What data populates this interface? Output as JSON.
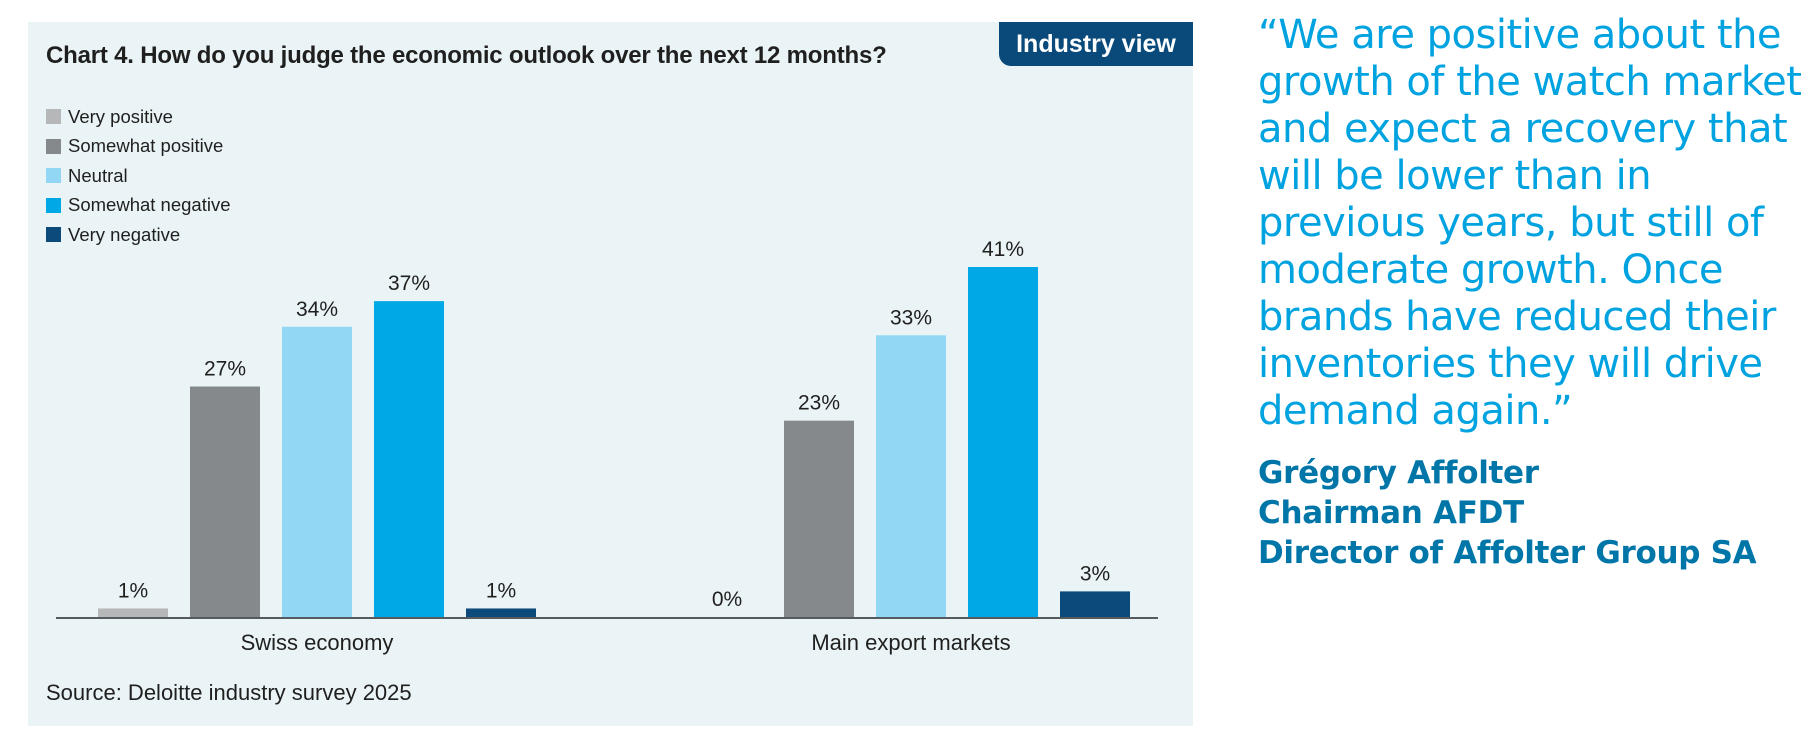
{
  "badge": "Industry view",
  "source": "Source: Deloitte industry survey 2025",
  "quote": "“We are positive about the growth of the watch market and expect a recovery that will be lower than in previous years, but still of moderate growth. Once brands have reduced their inventories they will drive demand again.”",
  "attribution": {
    "name": "Grégory Affolter",
    "role1": "Chairman AFDT",
    "role2": "Director of Affolter Group SA"
  },
  "chart_data": {
    "type": "bar",
    "title": "Chart 4. How do you judge the economic outlook over the next 12 months?",
    "categories": [
      "Swiss economy",
      "Main export markets"
    ],
    "series": [
      {
        "name": "Very positive",
        "color": "#b5b7b9",
        "values": [
          1,
          0
        ],
        "labels": [
          "1%",
          "0%"
        ]
      },
      {
        "name": "Somewhat positive",
        "color": "#86898c",
        "values": [
          27,
          23
        ],
        "labels": [
          "27%",
          "23%"
        ]
      },
      {
        "name": "Neutral",
        "color": "#92d8f5",
        "values": [
          34,
          33
        ],
        "labels": [
          "34%",
          "33%"
        ]
      },
      {
        "name": "Somewhat negative",
        "color": "#00a9e6",
        "values": [
          37,
          41
        ],
        "labels": [
          "37%",
          "41%"
        ]
      },
      {
        "name": "Very negative",
        "color": "#0c4a7c",
        "values": [
          1,
          3
        ],
        "labels": [
          "1%",
          "3%"
        ]
      }
    ],
    "xlabel": "",
    "ylabel": "",
    "ylim": [
      0,
      41
    ],
    "legend": "top-left",
    "grid": false
  }
}
